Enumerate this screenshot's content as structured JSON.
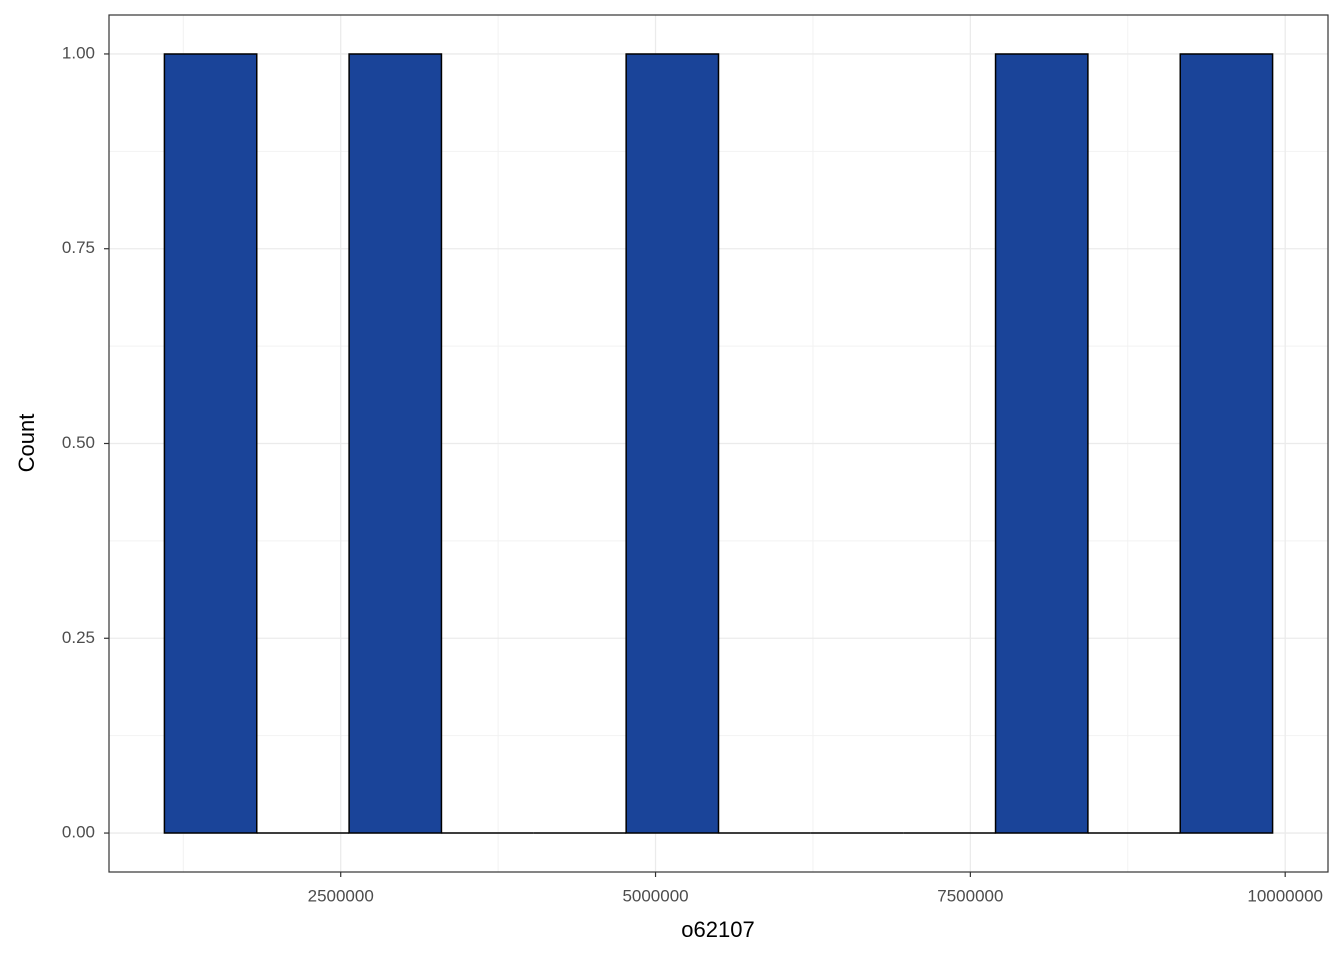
{
  "chart_data": {
    "type": "histogram",
    "x_label": "o62107",
    "y_label": "Count",
    "bins": [
      1100000,
      1833333,
      2566667,
      3300000,
      4033333,
      4766667,
      5500000,
      6233333,
      6966667,
      7700000,
      8433333,
      9166667,
      9900000
    ],
    "values": [
      1,
      0,
      1,
      0,
      0,
      1,
      0,
      0,
      0,
      1,
      0,
      1
    ],
    "color": "#1a4499",
    "edge_color": "#000000",
    "xlim": [
      660000,
      10340000
    ],
    "xticks": [
      2500000,
      5000000,
      7500000,
      10000000
    ],
    "x_minor_ticks": [
      1250000,
      3750000,
      6250000,
      8750000
    ],
    "ylim": [
      -0.05,
      1.05
    ],
    "yticks": [
      {
        "value": 0,
        "label": "0.00"
      },
      {
        "value": 0.25,
        "label": "0.25"
      },
      {
        "value": 0.5,
        "label": "0.50"
      },
      {
        "value": 0.75,
        "label": "0.75"
      },
      {
        "value": 1,
        "label": "1.00"
      }
    ],
    "y_minor_ticks": [
      0.125,
      0.375,
      0.625,
      0.875
    ],
    "grid": true
  }
}
